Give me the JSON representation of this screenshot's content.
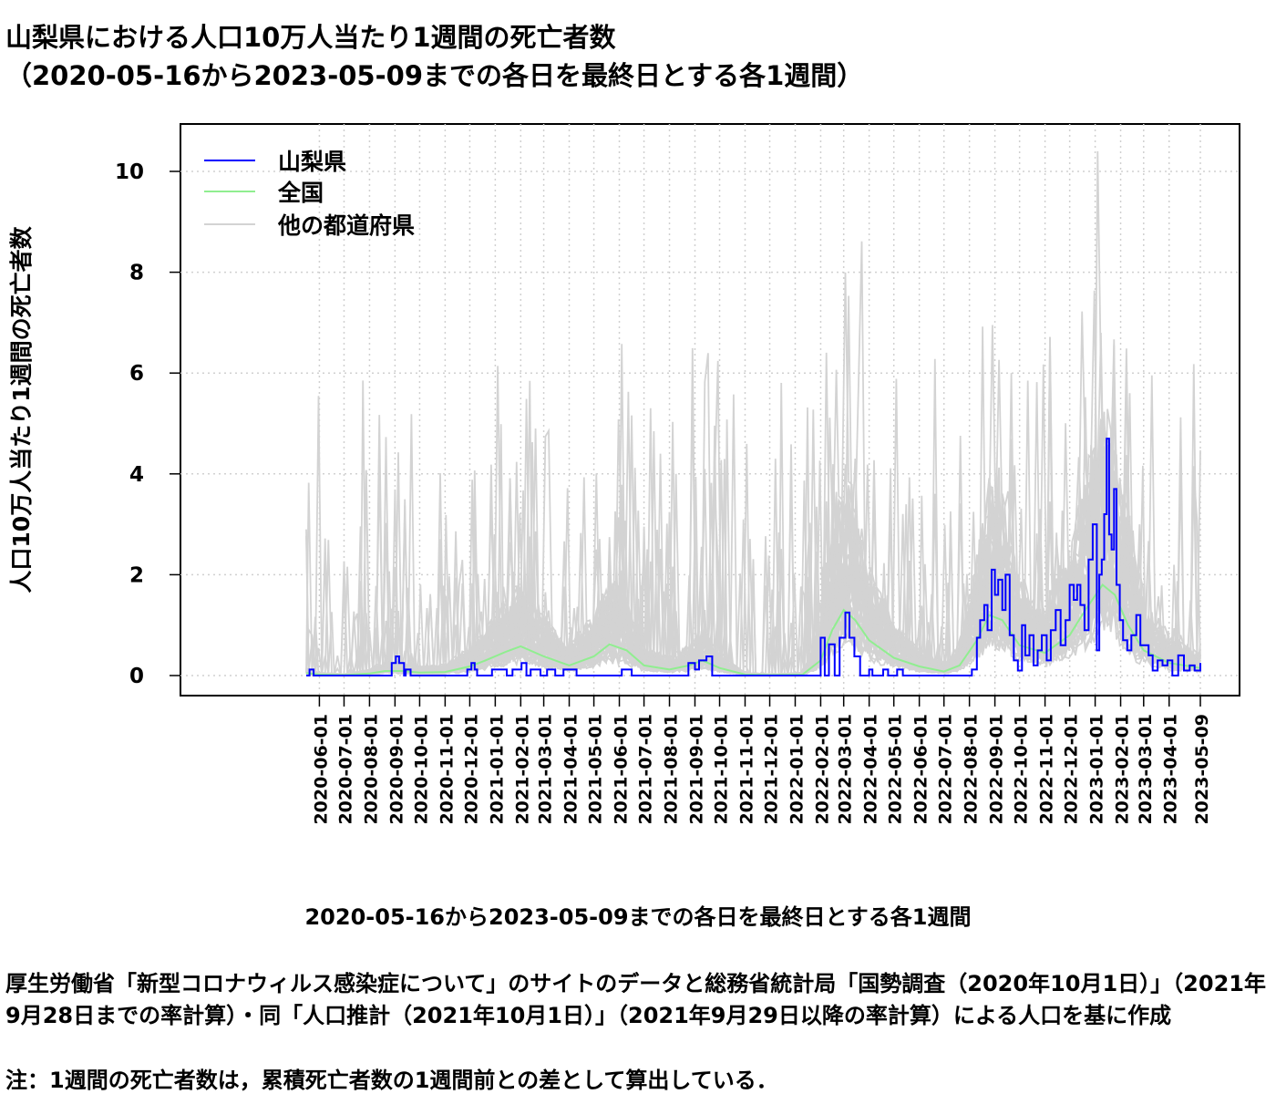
{
  "title_line1": "山梨県における人口10万人当たり1週間の死亡者数",
  "title_line2": "（2020-05-16から2023-05-09までの各日を最終日とする各1週間）",
  "xlabel": "2020-05-16から2023-05-09までの各日を最終日とする各1週間",
  "source_text": "厚生労働省「新型コロナウィルス感染症について」のサイトのデータと総務省統計局「国勢調査（2020年10月1日）」（2021年9月28日までの率計算）・同「人口推計（2021年10月1日）」（2021年9月29日以降の率計算）による人口を基に作成",
  "note_text": "注：1週間の死亡者数は，累積死亡者数の1週間前との差として算出している．",
  "chart_data": {
    "type": "line",
    "ylabel": "人口10万人当たり1週間の死亡者数",
    "ylim": [
      0,
      10.8
    ],
    "yticks": [
      0,
      2,
      4,
      6,
      8,
      10
    ],
    "x_range": [
      "2020-05-16",
      "2023-05-09"
    ],
    "x_tick_labels": [
      "2020-06-01",
      "2020-07-01",
      "2020-08-01",
      "2020-09-01",
      "2020-10-01",
      "2020-11-01",
      "2020-12-01",
      "2021-01-01",
      "2021-02-01",
      "2021-03-01",
      "2021-04-01",
      "2021-05-01",
      "2021-06-01",
      "2021-07-01",
      "2021-08-01",
      "2021-09-01",
      "2021-10-01",
      "2021-11-01",
      "2021-12-01",
      "2022-01-01",
      "2022-02-01",
      "2022-03-01",
      "2022-04-01",
      "2022-05-01",
      "2022-06-01",
      "2022-07-01",
      "2022-08-01",
      "2022-09-01",
      "2022-10-01",
      "2022-11-01",
      "2022-12-01",
      "2023-01-01",
      "2023-02-01",
      "2023-03-01",
      "2023-04-01",
      "2023-05-09"
    ],
    "grid": true,
    "legend_position": "top-left",
    "series": [
      {
        "name": "山梨県",
        "color": "#0000ff",
        "x": [
          "2020-05-16",
          "2020-05-20",
          "2020-05-25",
          "2020-08-25",
          "2020-08-28",
          "2020-09-02",
          "2020-09-06",
          "2020-09-12",
          "2020-09-14",
          "2020-09-20",
          "2020-11-24",
          "2020-11-28",
          "2020-12-03",
          "2020-12-07",
          "2020-12-10",
          "2020-12-28",
          "2021-01-01",
          "2021-01-15",
          "2021-01-22",
          "2021-02-02",
          "2021-02-08",
          "2021-02-13",
          "2021-02-25",
          "2021-03-05",
          "2021-03-15",
          "2021-03-25",
          "2021-04-01",
          "2021-04-10",
          "2021-05-29",
          "2021-06-04",
          "2021-06-10",
          "2021-06-16",
          "2021-08-20",
          "2021-08-24",
          "2021-09-01",
          "2021-09-06",
          "2021-09-15",
          "2021-09-22",
          "2022-01-30",
          "2022-02-01",
          "2022-02-06",
          "2022-02-11",
          "2022-02-18",
          "2022-02-24",
          "2022-03-03",
          "2022-03-08",
          "2022-03-14",
          "2022-03-21",
          "2022-04-01",
          "2022-04-05",
          "2022-04-18",
          "2022-04-24",
          "2022-05-05",
          "2022-05-12",
          "2022-07-28",
          "2022-08-04",
          "2022-08-10",
          "2022-08-14",
          "2022-08-19",
          "2022-08-23",
          "2022-08-28",
          "2022-09-01",
          "2022-09-05",
          "2022-09-10",
          "2022-09-14",
          "2022-09-19",
          "2022-09-24",
          "2022-09-29",
          "2022-10-04",
          "2022-10-08",
          "2022-10-13",
          "2022-10-18",
          "2022-10-23",
          "2022-10-28",
          "2022-11-03",
          "2022-11-08",
          "2022-11-14",
          "2022-11-20",
          "2022-11-26",
          "2022-12-01",
          "2022-12-06",
          "2022-12-10",
          "2022-12-14",
          "2022-12-19",
          "2022-12-24",
          "2022-12-29",
          "2023-01-03",
          "2023-01-06",
          "2023-01-09",
          "2023-01-12",
          "2023-01-15",
          "2023-01-18",
          "2023-01-21",
          "2023-01-24",
          "2023-01-27",
          "2023-01-31",
          "2023-02-04",
          "2023-02-09",
          "2023-02-14",
          "2023-02-20",
          "2023-02-25",
          "2023-03-02",
          "2023-03-07",
          "2023-03-12",
          "2023-03-18",
          "2023-03-24",
          "2023-03-30",
          "2023-04-05",
          "2023-04-12",
          "2023-04-19",
          "2023-04-26",
          "2023-05-02",
          "2023-05-09"
        ],
        "values": [
          0,
          0.12,
          0,
          0,
          0.25,
          0.38,
          0.25,
          0,
          0.12,
          0,
          0,
          0.12,
          0.25,
          0.12,
          0,
          0.12,
          0.12,
          0,
          0.12,
          0.25,
          0,
          0.12,
          0,
          0.12,
          0,
          0.12,
          0.12,
          0,
          0,
          0.12,
          0.12,
          0,
          0,
          0.25,
          0.12,
          0.3,
          0.38,
          0,
          0,
          0.75,
          0,
          0.62,
          0,
          0.75,
          1.25,
          0.75,
          0.38,
          0,
          0.12,
          0,
          0.12,
          0,
          0.12,
          0,
          0,
          0.12,
          0.75,
          1.1,
          1.4,
          0.9,
          2.1,
          1.6,
          1.9,
          1.3,
          2.0,
          0.8,
          0.3,
          0.1,
          1.0,
          0.4,
          0.8,
          0.2,
          0.5,
          0.8,
          0.3,
          0.9,
          1.3,
          0.6,
          1.1,
          1.8,
          1.5,
          1.8,
          1.4,
          0.9,
          2.3,
          3.0,
          0.5,
          2.0,
          2.3,
          3.2,
          4.7,
          2.8,
          2.5,
          3.7,
          1.8,
          1.1,
          0.7,
          0.5,
          0.8,
          1.2,
          0.6,
          0.6,
          0.4,
          0.1,
          0.3,
          0.2,
          0.3,
          0.0,
          0.4,
          0.1,
          0.2,
          0.1,
          0.25
        ]
      },
      {
        "name": "全国",
        "color": "#90ee90",
        "x": [
          "2020-05-16",
          "2020-06-01",
          "2020-07-01",
          "2020-08-01",
          "2020-08-20",
          "2020-09-10",
          "2020-10-01",
          "2020-11-01",
          "2020-12-01",
          "2020-12-20",
          "2021-01-15",
          "2021-02-01",
          "2021-03-01",
          "2021-04-01",
          "2021-05-01",
          "2021-05-20",
          "2021-06-10",
          "2021-07-01",
          "2021-08-01",
          "2021-08-25",
          "2021-09-10",
          "2021-10-01",
          "2021-11-01",
          "2021-12-01",
          "2022-01-10",
          "2022-02-01",
          "2022-02-15",
          "2022-03-01",
          "2022-03-15",
          "2022-04-01",
          "2022-05-01",
          "2022-06-01",
          "2022-07-01",
          "2022-07-20",
          "2022-08-10",
          "2022-08-25",
          "2022-09-10",
          "2022-10-01",
          "2022-11-01",
          "2022-12-01",
          "2022-12-20",
          "2023-01-10",
          "2023-01-25",
          "2023-02-10",
          "2023-03-01",
          "2023-04-01",
          "2023-05-09"
        ],
        "values": [
          0.05,
          0.02,
          0.01,
          0.04,
          0.09,
          0.09,
          0.06,
          0.07,
          0.18,
          0.3,
          0.48,
          0.58,
          0.38,
          0.2,
          0.38,
          0.62,
          0.5,
          0.2,
          0.12,
          0.2,
          0.3,
          0.15,
          0.02,
          0.01,
          0.02,
          0.3,
          0.9,
          1.3,
          1.1,
          0.7,
          0.35,
          0.18,
          0.08,
          0.2,
          0.7,
          1.2,
          1.1,
          0.6,
          0.45,
          0.8,
          1.3,
          1.8,
          1.6,
          1.0,
          0.5,
          0.25,
          0.15
        ]
      },
      {
        "name": "他の都道府県",
        "color": "#d3d3d3"
      }
    ]
  }
}
